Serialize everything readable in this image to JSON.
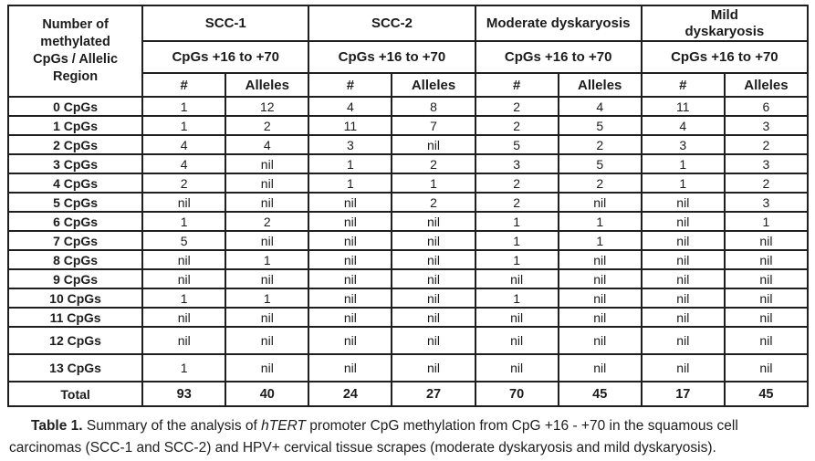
{
  "table": {
    "corner_label": "Number of methylated CpGs / Allelic Region",
    "groups": [
      {
        "name": "SCC-1",
        "subheader": "CpGs +16 to +70"
      },
      {
        "name": "SCC-2",
        "subheader": "CpGs +16 to +70"
      },
      {
        "name": "Moderate dyskaryosis",
        "subheader": "CpGs +16 to +70"
      },
      {
        "name": "Mild dyskaryosis",
        "subheader": "CpGs +16 to +70"
      }
    ],
    "sub_columns": [
      "#",
      "Alleles"
    ],
    "rows": [
      {
        "label": "0 CpGs",
        "values": [
          "1",
          "12",
          "4",
          "8",
          "2",
          "4",
          "11",
          "6"
        ]
      },
      {
        "label": "1 CpGs",
        "values": [
          "1",
          "2",
          "11",
          "7",
          "2",
          "5",
          "4",
          "3"
        ]
      },
      {
        "label": "2 CpGs",
        "values": [
          "4",
          "4",
          "3",
          "nil",
          "5",
          "2",
          "3",
          "2"
        ]
      },
      {
        "label": "3 CpGs",
        "values": [
          "4",
          "nil",
          "1",
          "2",
          "3",
          "5",
          "1",
          "3"
        ]
      },
      {
        "label": "4 CpGs",
        "values": [
          "2",
          "nil",
          "1",
          "1",
          "2",
          "2",
          "1",
          "2"
        ]
      },
      {
        "label": "5 CpGs",
        "values": [
          "nil",
          "nil",
          "nil",
          "2",
          "2",
          "nil",
          "nil",
          "3"
        ]
      },
      {
        "label": "6 CpGs",
        "values": [
          "1",
          "2",
          "nil",
          "nil",
          "1",
          "1",
          "nil",
          "1"
        ]
      },
      {
        "label": "7 CpGs",
        "values": [
          "5",
          "nil",
          "nil",
          "nil",
          "1",
          "1",
          "nil",
          "nil"
        ]
      },
      {
        "label": "8 CpGs",
        "values": [
          "nil",
          "1",
          "nil",
          "nil",
          "1",
          "nil",
          "nil",
          "nil"
        ]
      },
      {
        "label": "9 CpGs",
        "values": [
          "nil",
          "nil",
          "nil",
          "nil",
          "nil",
          "nil",
          "nil",
          "nil"
        ]
      },
      {
        "label": "10 CpGs",
        "values": [
          "1",
          "1",
          "nil",
          "nil",
          "1",
          "nil",
          "nil",
          "nil"
        ]
      },
      {
        "label": "11 CpGs",
        "values": [
          "nil",
          "nil",
          "nil",
          "nil",
          "nil",
          "nil",
          "nil",
          "nil"
        ]
      },
      {
        "label": "12 CpGs",
        "values": [
          "nil",
          "nil",
          "nil",
          "nil",
          "nil",
          "nil",
          "nil",
          "nil"
        ],
        "tall": true
      },
      {
        "label": "13 CpGs",
        "values": [
          "1",
          "nil",
          "nil",
          "nil",
          "nil",
          "nil",
          "nil",
          "nil"
        ],
        "tall": true
      }
    ],
    "total_row": {
      "label": "Total",
      "values": [
        "93",
        "40",
        "24",
        "27",
        "70",
        "45",
        "17",
        "45"
      ]
    }
  },
  "caption": {
    "label": "Table 1.",
    "text_before_gene": "Summary of the analysis of",
    "gene": "hTERT",
    "text_after_gene": "promoter CpG methylation from CpG +16 - +70 in the squamous cell carcinomas (SCC-1 and SCC-2) and HPV+ cervical tissue scrapes (moderate dyskaryosis and mild dyskaryosis)."
  }
}
